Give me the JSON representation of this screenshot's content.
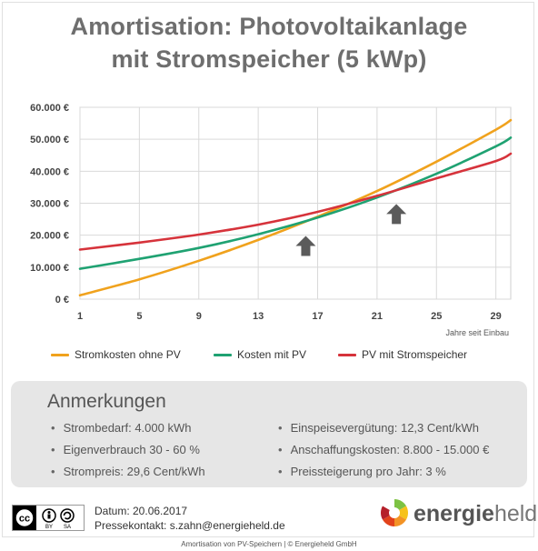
{
  "title": {
    "line1": "Amortisation: Photovoltaikanlage",
    "line2": "mit Stromspeicher (5 kWp)"
  },
  "chart_data": {
    "type": "line",
    "x": [
      1,
      5,
      9,
      13,
      17,
      21,
      25,
      29,
      30
    ],
    "xticks": [
      1,
      5,
      9,
      13,
      17,
      21,
      25,
      29
    ],
    "xlabel": "Jahre seit Einbau",
    "ylabel": "",
    "ylim": [
      0,
      60000
    ],
    "yticks": [
      0,
      10000,
      20000,
      30000,
      40000,
      50000,
      60000
    ],
    "ytick_labels": [
      "0 €",
      "10.000 €",
      "20.000 €",
      "30.000 €",
      "40.000 €",
      "50.000 €",
      "60.000 €"
    ],
    "grid": true,
    "legend_position": "bottom",
    "series": [
      {
        "name": "Stromkosten ohne PV",
        "color": "#f0a21d",
        "values": [
          1200,
          6200,
          12000,
          18500,
          25800,
          33800,
          43000,
          53000,
          56000
        ]
      },
      {
        "name": "Kosten mit PV",
        "color": "#1fa272",
        "values": [
          9500,
          12600,
          16000,
          20300,
          25500,
          31800,
          39200,
          47800,
          50500
        ]
      },
      {
        "name": "PV mit Stromspeicher",
        "color": "#d6333b",
        "values": [
          15500,
          17700,
          20200,
          23300,
          27300,
          32300,
          37800,
          43200,
          45500
        ]
      }
    ],
    "annotations": [
      {
        "type": "arrow-up",
        "x": 16.2,
        "y": 13500,
        "color": "#5b5b5b"
      },
      {
        "type": "arrow-up",
        "x": 22.3,
        "y": 23500,
        "color": "#5b5b5b"
      }
    ]
  },
  "notes": {
    "title": "Anmerkungen",
    "left": [
      "Strombedarf: 4.000 kWh",
      "Eigenverbrauch 30 - 60 %",
      "Strompreis: 29,6 Cent/kWh"
    ],
    "right": [
      "Einspeisevergütung: 12,3 Cent/kWh",
      "Anschaffungskosten: 8.800 - 15.000 €",
      "Preissteigerung pro Jahr: 3 %"
    ]
  },
  "footer": {
    "date": "Datum: 20.06.2017",
    "contact": "Pressekontakt: s.zahn@energieheld.de",
    "license_logo": "cc-by-sa-icon",
    "license_by": "BY",
    "license_sa": "SA",
    "brand_bold": "energie",
    "brand_rest": "held",
    "brand_logo": "energieheld-logo-icon",
    "caption": "Amortisation von PV-Speichern | © Energieheld GmbH"
  },
  "colors": {
    "title": "#6e6e6e",
    "grid": "#d9d9d9",
    "notes_bg": "#e6e6e6"
  }
}
